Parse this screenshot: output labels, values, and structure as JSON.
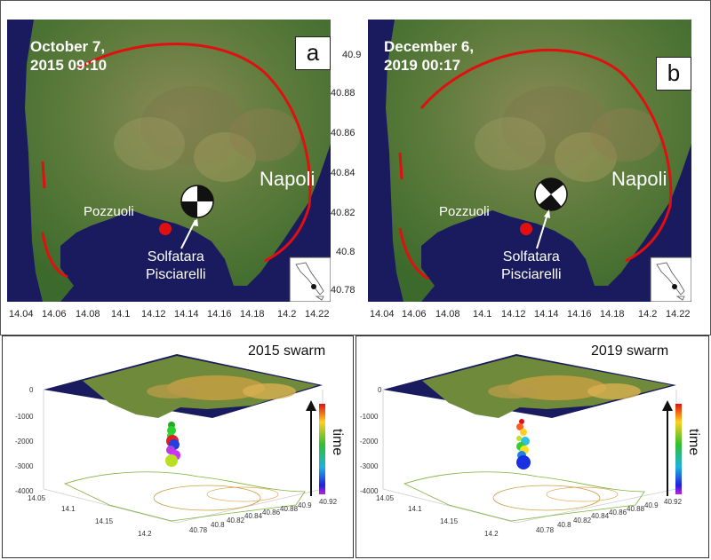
{
  "panels": {
    "a": {
      "letter": "a",
      "date": "October 7,\n2015 09:10",
      "pozzuoli": "Pozzuoli",
      "napoli": "Napoli",
      "solfatara": "Solfatara\nPisciarelli"
    },
    "b": {
      "letter": "b",
      "date": "December 6,\n2019 00:17",
      "pozzuoli": "Pozzuoli",
      "napoli": "Napoli",
      "solfatara": "Solfatara\nPisciarelli"
    }
  },
  "axes": {
    "lon_ticks": [
      "14.04",
      "14.06",
      "14.08",
      "14.1",
      "14.12",
      "14.14",
      "14.16",
      "14.18",
      "14.2",
      "14.22"
    ],
    "lat_ticks": [
      "40.9",
      "40.88",
      "40.86",
      "40.84",
      "40.82",
      "40.8",
      "40.78"
    ]
  },
  "swarms": {
    "s2015": {
      "title": "2015 swarm",
      "time_label": "time",
      "z_ticks": [
        "0",
        "-1000",
        "-2000",
        "-3000",
        "-4000"
      ],
      "lon_ticks": [
        "14.05",
        "14.1",
        "14.15",
        "14.2"
      ],
      "lat_ticks": [
        "40.78",
        "40.8",
        "40.82",
        "40.84",
        "40.86",
        "40.88",
        "40.9",
        "40.92"
      ]
    },
    "s2019": {
      "title": "2019 swarm",
      "time_label": "time",
      "z_ticks": [
        "0",
        "-1000",
        "-2000",
        "-3000",
        "-4000"
      ],
      "lon_ticks": [
        "14.05",
        "14.1",
        "14.15",
        "14.2"
      ],
      "lat_ticks": [
        "40.78",
        "40.8",
        "40.82",
        "40.84",
        "40.86",
        "40.88",
        "40.9",
        "40.92"
      ]
    }
  },
  "colors": {
    "sea": "#1a1a5e",
    "land": "#4f7a3a",
    "caldera_rim": "#e01010",
    "epicenter": "#e01010"
  }
}
